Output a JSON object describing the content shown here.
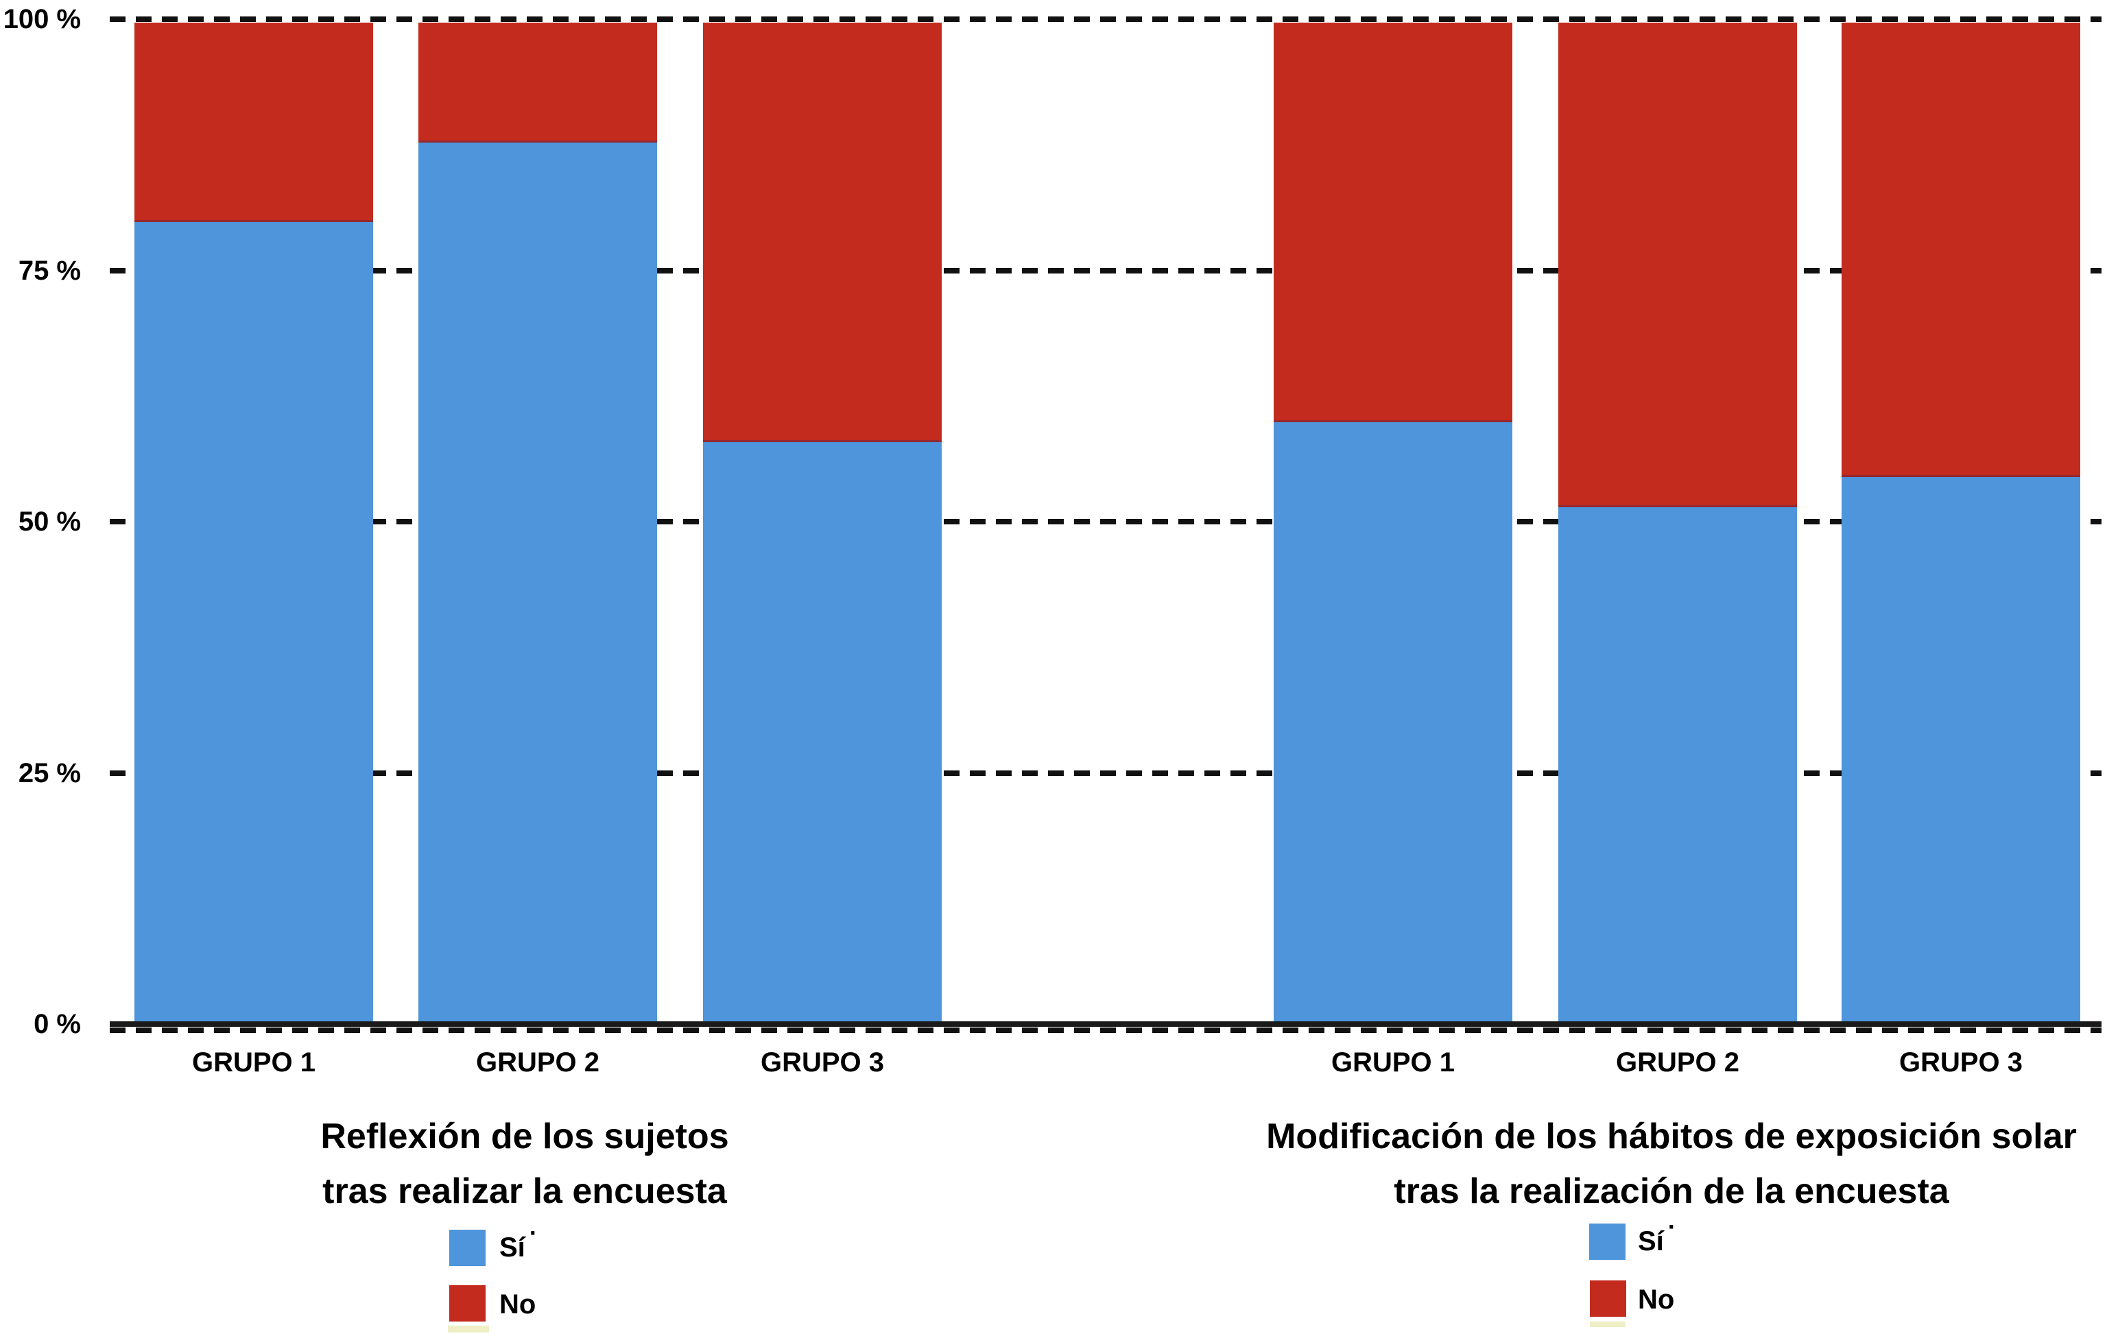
{
  "chart_data": {
    "type": "bar",
    "subtype": "stacked-percentage-columns",
    "unit": "%",
    "grid": "dashed-horizontal",
    "y_axis": {
      "tick_labels": [
        "100 %",
        "75 %",
        "50 %",
        "25 %",
        "0 %"
      ],
      "tick_values": [
        100,
        75,
        50,
        25,
        0
      ],
      "range": [
        0,
        100
      ]
    },
    "panels": [
      {
        "title_lines": [
          "Reflexión de los sujetos",
          "tras realizar la encuesta"
        ],
        "categories": [
          "GRUPO 1",
          "GRUPO 2",
          "GRUPO 3"
        ],
        "series": [
          {
            "name": "Sí",
            "values": [
              80,
              88,
              58
            ]
          },
          {
            "name": "No",
            "values": [
              20,
              12,
              42
            ]
          }
        ]
      },
      {
        "title_lines": [
          "Modificación de los hábitos de exposición solar",
          "tras la realización de la encuesta"
        ],
        "categories": [
          "GRUPO 1",
          "GRUPO 2",
          "GRUPO 3"
        ],
        "series": [
          {
            "name": "Sí",
            "values": [
              60,
              51.5,
              54.5
            ]
          },
          {
            "name": "No",
            "values": [
              40,
              48.5,
              45.5
            ]
          }
        ]
      }
    ],
    "legend": {
      "position": "below-each-panel",
      "items": [
        {
          "label": "Sí",
          "mark": "·",
          "color": "#4E95DB"
        },
        {
          "label": "No",
          "color": "#C22B1E"
        }
      ]
    }
  },
  "colors": {
    "si_blue": "#4E95DB",
    "no_red": "#C22B1E",
    "gridline": "#111111",
    "axis": "#1a1a1a",
    "text": "#000000",
    "clipped_swatch_yellow": "#EEEFC4"
  }
}
